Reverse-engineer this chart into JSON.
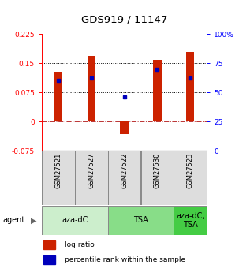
{
  "title": "GDS919 / 11147",
  "samples": [
    "GSM27521",
    "GSM27527",
    "GSM27522",
    "GSM27530",
    "GSM27523"
  ],
  "log_ratios": [
    0.128,
    0.168,
    -0.032,
    0.158,
    0.178
  ],
  "percentile_ranks": [
    60,
    62,
    46,
    70,
    62
  ],
  "ylim_left": [
    -0.075,
    0.225
  ],
  "ylim_right": [
    0,
    100
  ],
  "yticks_left": [
    -0.075,
    0,
    0.075,
    0.15,
    0.225
  ],
  "ytick_labels_left": [
    "-0.075",
    "0",
    "0.075",
    "0.15",
    "0.225"
  ],
  "yticks_right": [
    0,
    25,
    50,
    75,
    100
  ],
  "ytick_labels_right": [
    "0",
    "25",
    "50",
    "75",
    "100%"
  ],
  "hlines_dotted": [
    0.075,
    0.15
  ],
  "hline_dashdot": 0,
  "bar_color": "#cc2200",
  "percentile_color": "#0000bb",
  "agent_groups": [
    {
      "label": "aza-dC",
      "count": 2,
      "color": "#cceecc"
    },
    {
      "label": "TSA",
      "count": 2,
      "color": "#88dd88"
    },
    {
      "label": "aza-dC,\nTSA",
      "count": 1,
      "color": "#44cc44"
    }
  ],
  "sample_box_color": "#dddddd",
  "legend_log_ratio_label": "log ratio",
  "legend_percentile_label": "percentile rank within the sample",
  "bar_width": 0.25,
  "title_fontsize": 9.5,
  "tick_fontsize": 6.5,
  "sample_fontsize": 6,
  "agent_fontsize": 7,
  "legend_fontsize": 6.5,
  "agent_label": "agent"
}
